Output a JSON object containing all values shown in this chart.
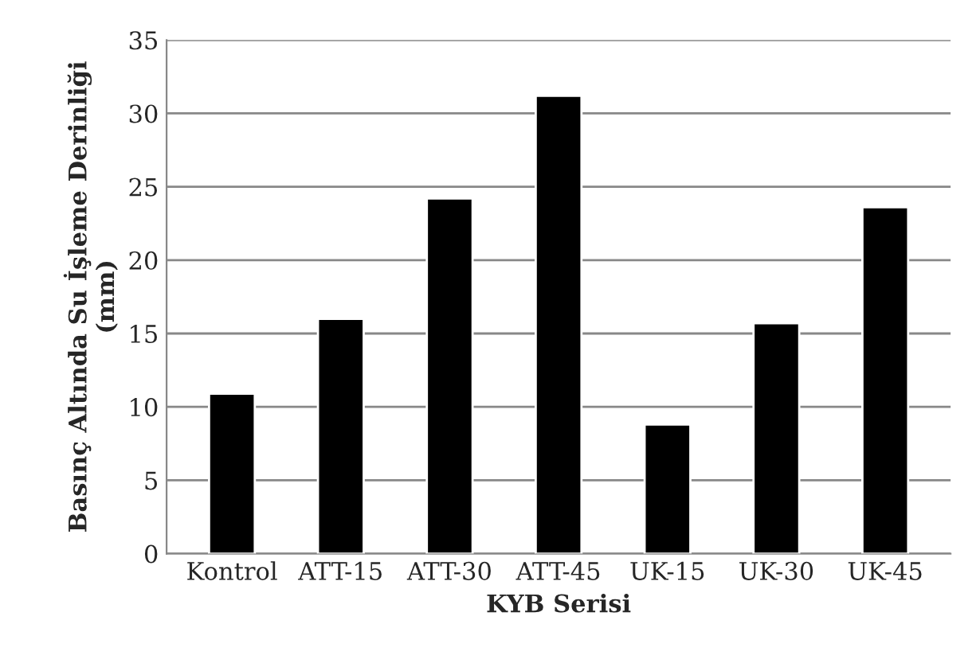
{
  "chart_data": {
    "type": "bar",
    "xlabel": "KYB Serisi",
    "ylabel": "Basınç Altında Su İşleme Derinliği\n(mm)",
    "categories": [
      "Kontrol",
      "ATT-15",
      "ATT-30",
      "ATT-45",
      "UK-15",
      "UK-30",
      "UK-45"
    ],
    "values": [
      10.9,
      16.0,
      24.2,
      31.2,
      8.8,
      15.7,
      23.6
    ],
    "color": "#000000",
    "ylim": [
      0,
      35
    ],
    "yticks": [
      0,
      5,
      10,
      15,
      20,
      25,
      30,
      35
    ],
    "grid": "y",
    "legend": false
  }
}
